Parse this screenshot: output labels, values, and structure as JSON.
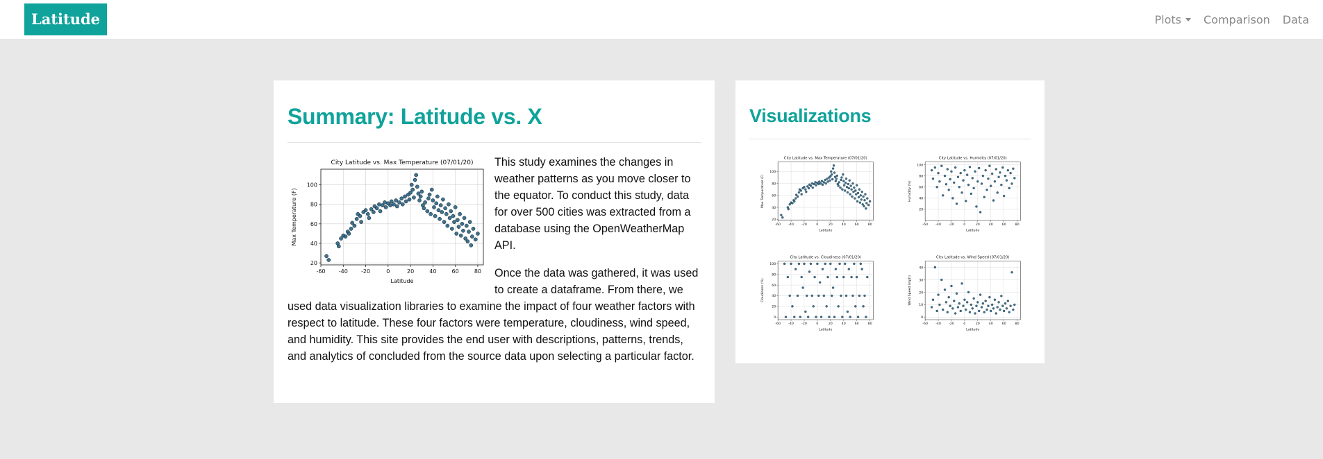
{
  "navbar": {
    "brand": "Latitude",
    "links": [
      {
        "label": "Plots",
        "dropdown": true
      },
      {
        "label": "Comparison"
      },
      {
        "label": "Data"
      }
    ]
  },
  "summary": {
    "title": "Summary: Latitude vs. X",
    "paragraph1": "This study examines the changes in weather patterns as you move closer to the equator. To conduct this study, data for over 500 cities was extracted from a database using the OpenWeatherMap API.",
    "paragraph2": "Once the data was gathered, it was used to create a dataframe. From there, we used data visualization libraries to examine the impact of four weather factors with respect to latitude. These four factors were temperature, cloudiness, wind speed, and humidity. This site provides the end user with descriptions, patterns, trends, and analytics of concluded from the source data upon selecting a particular factor."
  },
  "visualizations": {
    "title": "Visualizations"
  },
  "colors": {
    "accent": "#0fa39b",
    "marker": "#1f5a7a",
    "background": "#e8e8e8"
  },
  "chart_data": [
    {
      "type": "scatter",
      "id": "temp",
      "title": "City Latitude vs. Max Temperature (07/01/20)",
      "xlabel": "Latitude",
      "ylabel": "Max Temperature (F)",
      "xlim": [
        -60,
        85
      ],
      "ylim": [
        18,
        116
      ],
      "xticks": [
        -60,
        -40,
        -20,
        0,
        20,
        40,
        60,
        80
      ],
      "yticks": [
        20,
        40,
        60,
        80,
        100
      ],
      "grid": true,
      "points": [
        [
          -55,
          27
        ],
        [
          -53,
          23
        ],
        [
          -45,
          40
        ],
        [
          -44,
          37
        ],
        [
          -42,
          45
        ],
        [
          -40,
          48
        ],
        [
          -38,
          47
        ],
        [
          -36,
          52
        ],
        [
          -35,
          50
        ],
        [
          -33,
          55
        ],
        [
          -32,
          61
        ],
        [
          -30,
          58
        ],
        [
          -28,
          65
        ],
        [
          -27,
          70
        ],
        [
          -25,
          68
        ],
        [
          -24,
          62
        ],
        [
          -22,
          72
        ],
        [
          -20,
          74
        ],
        [
          -18,
          70
        ],
        [
          -17,
          66
        ],
        [
          -15,
          75
        ],
        [
          -13,
          72
        ],
        [
          -12,
          78
        ],
        [
          -10,
          76
        ],
        [
          -8,
          80
        ],
        [
          -7,
          73
        ],
        [
          -5,
          79
        ],
        [
          -3,
          82
        ],
        [
          -2,
          77
        ],
        [
          0,
          81
        ],
        [
          2,
          79
        ],
        [
          3,
          83
        ],
        [
          5,
          80
        ],
        [
          7,
          84
        ],
        [
          8,
          78
        ],
        [
          10,
          82
        ],
        [
          12,
          86
        ],
        [
          13,
          80
        ],
        [
          15,
          88
        ],
        [
          16,
          83
        ],
        [
          18,
          90
        ],
        [
          19,
          85
        ],
        [
          20,
          92
        ],
        [
          21,
          100
        ],
        [
          22,
          95
        ],
        [
          23,
          87
        ],
        [
          24,
          105
        ],
        [
          25,
          110
        ],
        [
          26,
          98
        ],
        [
          27,
          91
        ],
        [
          28,
          84
        ],
        [
          29,
          88
        ],
        [
          30,
          93
        ],
        [
          31,
          79
        ],
        [
          32,
          76
        ],
        [
          33,
          82
        ],
        [
          35,
          73
        ],
        [
          36,
          86
        ],
        [
          37,
          90
        ],
        [
          38,
          70
        ],
        [
          39,
          95
        ],
        [
          40,
          84
        ],
        [
          41,
          77
        ],
        [
          42,
          68
        ],
        [
          43,
          81
        ],
        [
          44,
          88
        ],
        [
          45,
          74
        ],
        [
          46,
          65
        ],
        [
          47,
          79
        ],
        [
          48,
          72
        ],
        [
          49,
          85
        ],
        [
          50,
          62
        ],
        [
          51,
          76
        ],
        [
          52,
          70
        ],
        [
          53,
          58
        ],
        [
          54,
          80
        ],
        [
          55,
          66
        ],
        [
          56,
          73
        ],
        [
          57,
          55
        ],
        [
          58,
          68
        ],
        [
          59,
          62
        ],
        [
          60,
          77
        ],
        [
          61,
          50
        ],
        [
          62,
          64
        ],
        [
          63,
          57
        ],
        [
          64,
          70
        ],
        [
          65,
          48
        ],
        [
          66,
          60
        ],
        [
          67,
          53
        ],
        [
          68,
          66
        ],
        [
          69,
          45
        ],
        [
          70,
          58
        ],
        [
          71,
          42
        ],
        [
          72,
          52
        ],
        [
          73,
          62
        ],
        [
          74,
          38
        ],
        [
          75,
          47
        ],
        [
          76,
          55
        ],
        [
          78,
          44
        ],
        [
          80,
          50
        ]
      ]
    },
    {
      "type": "scatter",
      "id": "humidity",
      "title": "City Latitude vs. Humidity (07/01/20)",
      "xlabel": "Latitude",
      "ylabel": "Humidity (%)",
      "xlim": [
        -60,
        85
      ],
      "ylim": [
        0,
        105
      ],
      "xticks": [
        -60,
        -40,
        -20,
        0,
        20,
        40,
        60,
        80
      ],
      "yticks": [
        20,
        40,
        60,
        80,
        100
      ],
      "grid": true,
      "points": [
        [
          -50,
          90
        ],
        [
          -48,
          75
        ],
        [
          -45,
          95
        ],
        [
          -42,
          60
        ],
        [
          -40,
          85
        ],
        [
          -38,
          70
        ],
        [
          -35,
          98
        ],
        [
          -33,
          45
        ],
        [
          -30,
          80
        ],
        [
          -28,
          65
        ],
        [
          -26,
          92
        ],
        [
          -24,
          55
        ],
        [
          -22,
          74
        ],
        [
          -20,
          88
        ],
        [
          -18,
          40
        ],
        [
          -16,
          68
        ],
        [
          -14,
          95
        ],
        [
          -12,
          30
        ],
        [
          -10,
          78
        ],
        [
          -8,
          60
        ],
        [
          -6,
          85
        ],
        [
          -4,
          50
        ],
        [
          -2,
          72
        ],
        [
          0,
          90
        ],
        [
          2,
          35
        ],
        [
          4,
          82
        ],
        [
          6,
          64
        ],
        [
          8,
          96
        ],
        [
          10,
          48
        ],
        [
          12,
          76
        ],
        [
          14,
          58
        ],
        [
          16,
          88
        ],
        [
          18,
          25
        ],
        [
          20,
          70
        ],
        [
          22,
          94
        ],
        [
          24,
          15
        ],
        [
          26,
          66
        ],
        [
          28,
          80
        ],
        [
          30,
          42
        ],
        [
          32,
          90
        ],
        [
          34,
          55
        ],
        [
          36,
          75
        ],
        [
          38,
          98
        ],
        [
          40,
          62
        ],
        [
          42,
          84
        ],
        [
          44,
          36
        ],
        [
          46,
          70
        ],
        [
          48,
          92
        ],
        [
          50,
          50
        ],
        [
          52,
          78
        ],
        [
          54,
          86
        ],
        [
          56,
          64
        ],
        [
          58,
          95
        ],
        [
          60,
          44
        ],
        [
          62,
          80
        ],
        [
          64,
          72
        ],
        [
          66,
          90
        ],
        [
          68,
          58
        ],
        [
          70,
          85
        ],
        [
          72,
          66
        ],
        [
          74,
          93
        ],
        [
          76,
          76
        ]
      ]
    },
    {
      "type": "scatter",
      "id": "cloudiness",
      "title": "City Latitude vs. Cloudiness (07/01/20)",
      "xlabel": "Latitude",
      "ylabel": "Cloudiness (%)",
      "xlim": [
        -60,
        85
      ],
      "ylim": [
        -5,
        105
      ],
      "xticks": [
        -60,
        -40,
        -20,
        0,
        20,
        40,
        60,
        80
      ],
      "yticks": [
        0,
        20,
        40,
        60,
        80,
        100
      ],
      "grid": true,
      "points": [
        [
          -50,
          100
        ],
        [
          -48,
          0
        ],
        [
          -45,
          75
        ],
        [
          -42,
          40
        ],
        [
          -40,
          100
        ],
        [
          -38,
          20
        ],
        [
          -35,
          0
        ],
        [
          -33,
          90
        ],
        [
          -30,
          40
        ],
        [
          -28,
          100
        ],
        [
          -26,
          0
        ],
        [
          -24,
          75
        ],
        [
          -22,
          55
        ],
        [
          -20,
          100
        ],
        [
          -18,
          10
        ],
        [
          -16,
          40
        ],
        [
          -14,
          0
        ],
        [
          -12,
          85
        ],
        [
          -10,
          100
        ],
        [
          -8,
          40
        ],
        [
          -6,
          20
        ],
        [
          -4,
          75
        ],
        [
          -2,
          0
        ],
        [
          0,
          100
        ],
        [
          2,
          40
        ],
        [
          4,
          65
        ],
        [
          6,
          0
        ],
        [
          8,
          90
        ],
        [
          10,
          40
        ],
        [
          12,
          100
        ],
        [
          14,
          20
        ],
        [
          16,
          75
        ],
        [
          18,
          0
        ],
        [
          20,
          100
        ],
        [
          22,
          40
        ],
        [
          24,
          55
        ],
        [
          26,
          0
        ],
        [
          28,
          90
        ],
        [
          30,
          75
        ],
        [
          32,
          20
        ],
        [
          34,
          100
        ],
        [
          36,
          40
        ],
        [
          38,
          0
        ],
        [
          40,
          75
        ],
        [
          42,
          100
        ],
        [
          44,
          40
        ],
        [
          46,
          10
        ],
        [
          48,
          90
        ],
        [
          50,
          0
        ],
        [
          52,
          75
        ],
        [
          54,
          40
        ],
        [
          56,
          100
        ],
        [
          58,
          20
        ],
        [
          60,
          75
        ],
        [
          62,
          0
        ],
        [
          64,
          40
        ],
        [
          66,
          100
        ],
        [
          68,
          90
        ],
        [
          70,
          20
        ],
        [
          72,
          40
        ],
        [
          74,
          0
        ],
        [
          76,
          75
        ]
      ]
    },
    {
      "type": "scatter",
      "id": "wind",
      "title": "City Latitude vs. Wind Speed (07/01/20)",
      "xlabel": "Latitude",
      "ylabel": "Wind Speed (mph)",
      "xlim": [
        -60,
        85
      ],
      "ylim": [
        -2,
        45
      ],
      "xticks": [
        -60,
        -40,
        -20,
        0,
        20,
        40,
        60,
        80
      ],
      "yticks": [
        0,
        10,
        20,
        30,
        40
      ],
      "grid": true,
      "points": [
        [
          -50,
          8
        ],
        [
          -48,
          14
        ],
        [
          -45,
          40
        ],
        [
          -42,
          5
        ],
        [
          -40,
          18
        ],
        [
          -38,
          10
        ],
        [
          -35,
          30
        ],
        [
          -33,
          6
        ],
        [
          -30,
          22
        ],
        [
          -28,
          12
        ],
        [
          -26,
          4
        ],
        [
          -24,
          16
        ],
        [
          -22,
          9
        ],
        [
          -20,
          25
        ],
        [
          -18,
          7
        ],
        [
          -16,
          13
        ],
        [
          -14,
          3
        ],
        [
          -12,
          19
        ],
        [
          -10,
          8
        ],
        [
          -8,
          11
        ],
        [
          -6,
          5
        ],
        [
          -4,
          27
        ],
        [
          -2,
          9
        ],
        [
          0,
          14
        ],
        [
          2,
          6
        ],
        [
          4,
          12
        ],
        [
          6,
          20
        ],
        [
          8,
          4
        ],
        [
          10,
          10
        ],
        [
          12,
          7
        ],
        [
          14,
          15
        ],
        [
          16,
          3
        ],
        [
          18,
          9
        ],
        [
          20,
          12
        ],
        [
          22,
          5
        ],
        [
          24,
          18
        ],
        [
          26,
          8
        ],
        [
          28,
          11
        ],
        [
          30,
          4
        ],
        [
          32,
          13
        ],
        [
          34,
          6
        ],
        [
          36,
          9
        ],
        [
          38,
          16
        ],
        [
          40,
          5
        ],
        [
          42,
          10
        ],
        [
          44,
          7
        ],
        [
          46,
          14
        ],
        [
          48,
          3
        ],
        [
          50,
          8
        ],
        [
          52,
          12
        ],
        [
          54,
          6
        ],
        [
          56,
          17
        ],
        [
          58,
          9
        ],
        [
          60,
          5
        ],
        [
          62,
          11
        ],
        [
          64,
          7
        ],
        [
          66,
          13
        ],
        [
          68,
          4
        ],
        [
          70,
          9
        ],
        [
          72,
          36
        ],
        [
          74,
          6
        ],
        [
          76,
          10
        ]
      ]
    }
  ]
}
